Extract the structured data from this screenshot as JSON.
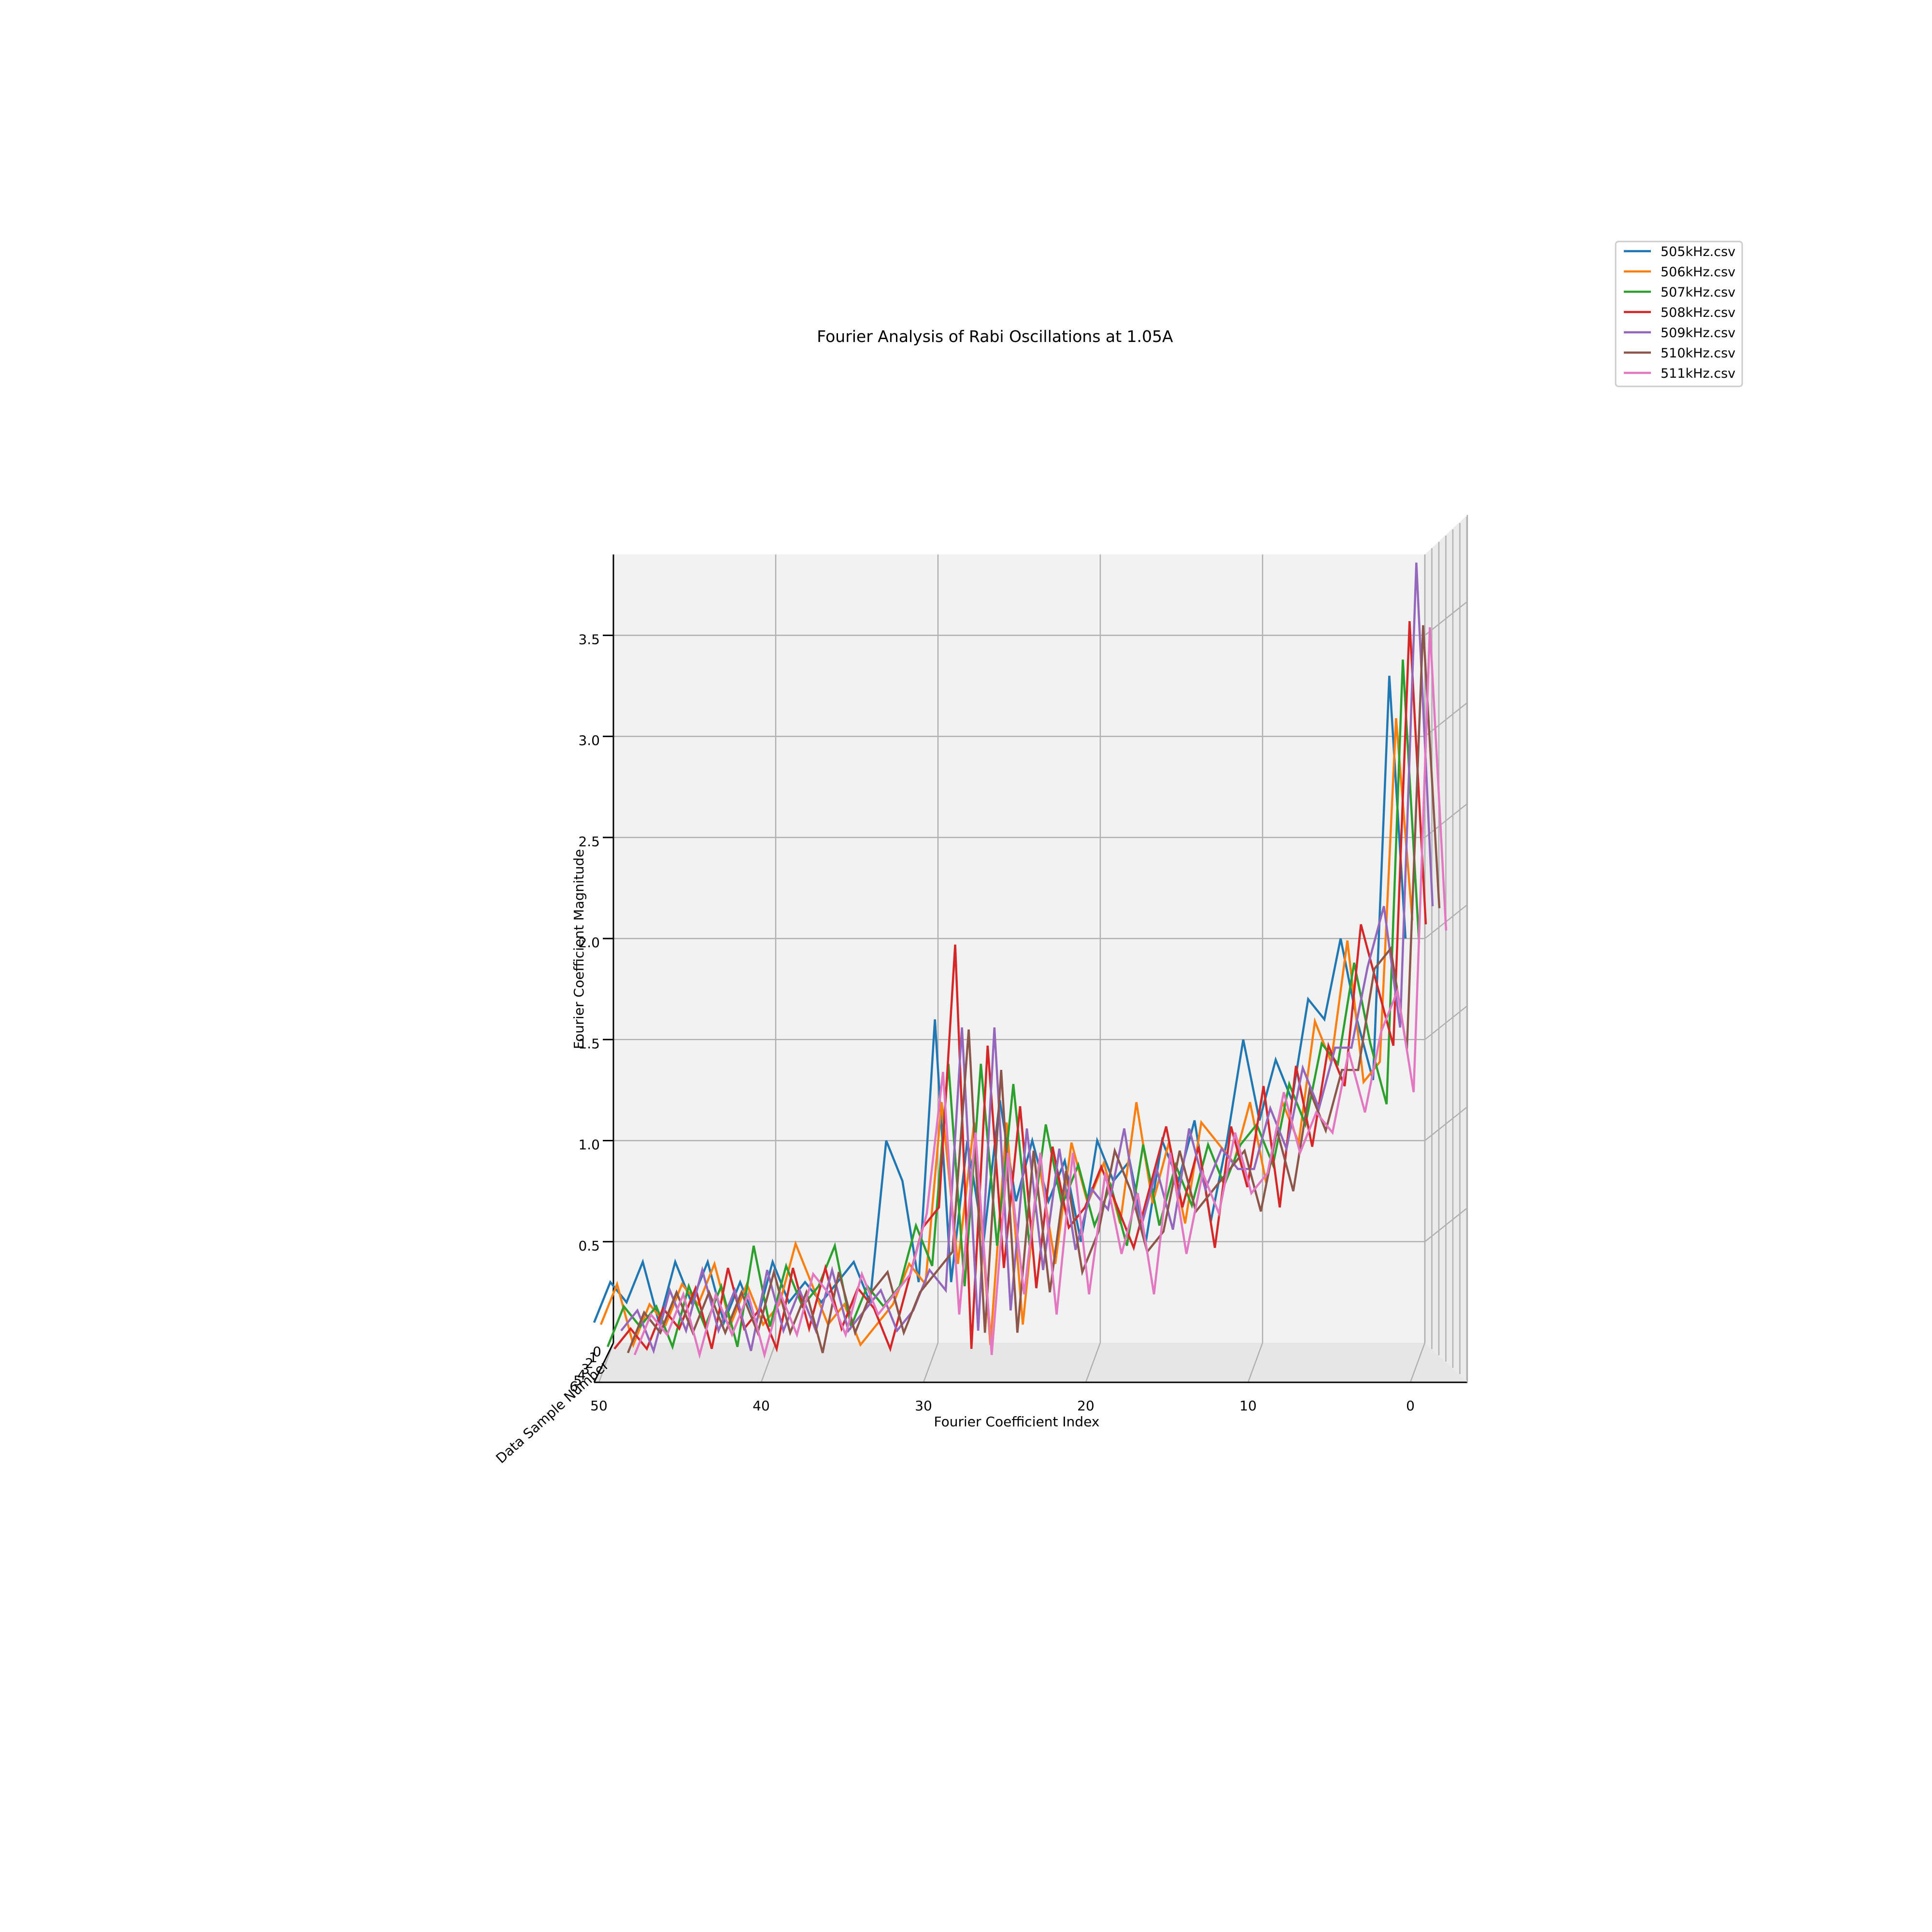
{
  "chart_data": {
    "type": "line",
    "projection": "3d",
    "title": "Fourier Analysis of Rabi Oscillations at 1.05A",
    "xlabel": "Fourier Coefficient Index",
    "ylabel": "Fourier Coefficient Magnitude",
    "zlabel": "Data Sample Number",
    "xlim": [
      0,
      50
    ],
    "xaxis_inverted": true,
    "ylim": [
      0,
      3.9
    ],
    "x_ticks": [
      "50",
      "40",
      "30",
      "20",
      "10",
      "0"
    ],
    "x_tick_values": [
      50,
      40,
      30,
      20,
      10,
      0
    ],
    "y_ticks": [
      "0.5",
      "1.0",
      "1.5",
      "2.0",
      "2.5",
      "3.0",
      "3.5"
    ],
    "y_tick_values": [
      0.5,
      1.0,
      1.5,
      2.0,
      2.5,
      3.0,
      3.5
    ],
    "z_ticks": [
      "0",
      "1",
      "2",
      "3",
      "4",
      "5",
      "6"
    ],
    "legend_position": "top-right",
    "grid": true,
    "colors": [
      "#1f77b4",
      "#ff7f0e",
      "#2ca02c",
      "#d62728",
      "#9467bd",
      "#8c564b",
      "#e377c2"
    ],
    "series": [
      {
        "name": "505kHz.csv",
        "depth": 0,
        "values": [
          2.0,
          3.3,
          1.3,
          1.6,
          2.0,
          1.6,
          1.7,
          1.2,
          1.4,
          1.1,
          1.5,
          1.0,
          0.6,
          1.1,
          0.8,
          1.0,
          0.5,
          0.9,
          0.8,
          1.0,
          0.5,
          0.9,
          0.7,
          1.0,
          0.7,
          1.2,
          0.5,
          1.0,
          0.3,
          1.6,
          0.3,
          0.8,
          1.0,
          0.2,
          0.4,
          0.3,
          0.2,
          0.3,
          0.2,
          0.4,
          0.1,
          0.3,
          0.1,
          0.4,
          0.2,
          0.4,
          0.1,
          0.4,
          0.2,
          0.3,
          0.1
        ]
      },
      {
        "name": "506kHz.csv",
        "depth": 1,
        "values": [
          2.1,
          3.1,
          1.4,
          1.3,
          2.0,
          1.4,
          1.6,
          1.0,
          1.2,
          0.8,
          1.2,
          0.9,
          1.0,
          1.1,
          0.6,
          1.0,
          0.7,
          1.2,
          0.6,
          0.9,
          0.7,
          1.0,
          0.4,
          0.9,
          0.1,
          1.1,
          0.0,
          1.1,
          0.4,
          1.2,
          0.3,
          0.4,
          0.2,
          0.1,
          0.0,
          0.2,
          0.1,
          0.3,
          0.5,
          0.2,
          0.1,
          0.3,
          0.1,
          0.4,
          0.2,
          0.3,
          0.1,
          0.2,
          0.0,
          0.3,
          0.1
        ]
      },
      {
        "name": "507kHz.csv",
        "depth": 2,
        "values": [
          2.0,
          3.4,
          1.2,
          1.5,
          1.9,
          1.4,
          1.5,
          1.1,
          1.3,
          0.9,
          1.1,
          1.0,
          0.8,
          1.0,
          0.7,
          0.9,
          0.6,
          1.0,
          0.5,
          0.8,
          0.6,
          0.9,
          0.7,
          1.1,
          0.5,
          1.3,
          0.5,
          1.4,
          0.3,
          1.4,
          0.4,
          0.6,
          0.3,
          0.2,
          0.3,
          0.1,
          0.5,
          0.3,
          0.2,
          0.4,
          0.1,
          0.5,
          0.0,
          0.3,
          0.1,
          0.3,
          0.0,
          0.2,
          0.1,
          0.2,
          0.0
        ]
      },
      {
        "name": "508kHz.csv",
        "depth": 3,
        "values": [
          2.1,
          3.6,
          1.5,
          1.8,
          2.1,
          1.3,
          1.5,
          1.0,
          1.4,
          0.7,
          1.3,
          0.8,
          1.1,
          0.5,
          1.0,
          0.7,
          1.1,
          0.8,
          0.5,
          0.7,
          0.9,
          0.7,
          0.6,
          1.0,
          0.3,
          1.2,
          0.4,
          1.5,
          0.0,
          2.0,
          0.7,
          0.6,
          0.3,
          0.0,
          0.2,
          0.3,
          0.1,
          0.4,
          0.1,
          0.4,
          0.0,
          0.2,
          0.1,
          0.4,
          0.0,
          0.3,
          0.1,
          0.2,
          0.0,
          0.1,
          0.0
        ]
      },
      {
        "name": "509kHz.csv",
        "depth": 4,
        "values": [
          2.2,
          3.9,
          1.6,
          2.2,
          1.9,
          1.5,
          1.5,
          1.2,
          1.4,
          1.0,
          1.2,
          0.9,
          0.9,
          1.0,
          0.8,
          1.1,
          0.6,
          0.9,
          0.6,
          1.1,
          0.7,
          0.8,
          0.5,
          1.0,
          0.4,
          1.1,
          0.2,
          1.6,
          0.1,
          1.6,
          0.3,
          0.4,
          0.2,
          0.1,
          0.3,
          0.2,
          0.1,
          0.4,
          0.1,
          0.3,
          0.1,
          0.4,
          0.0,
          0.3,
          0.1,
          0.4,
          0.1,
          0.3,
          0.0,
          0.2,
          0.1
        ]
      },
      {
        "name": "510kHz.csv",
        "depth": 5,
        "values": [
          2.2,
          3.6,
          1.5,
          2.0,
          1.9,
          1.4,
          1.4,
          1.1,
          1.3,
          0.8,
          1.1,
          0.7,
          1.0,
          0.9,
          0.8,
          0.7,
          1.0,
          0.6,
          0.5,
          0.8,
          1.0,
          0.6,
          0.4,
          0.9,
          0.3,
          1.0,
          0.1,
          1.4,
          0.1,
          1.6,
          0.5,
          0.4,
          0.3,
          0.1,
          0.4,
          0.3,
          0.1,
          0.4,
          0.0,
          0.3,
          0.1,
          0.4,
          0.1,
          0.3,
          0.1,
          0.3,
          0.1,
          0.3,
          0.1,
          0.2,
          0.0
        ]
      },
      {
        "name": "511kHz.csv",
        "depth": 6,
        "values": [
          2.1,
          3.6,
          1.3,
          1.8,
          1.6,
          1.2,
          1.5,
          1.1,
          1.2,
          1.0,
          1.3,
          0.9,
          0.8,
          1.1,
          0.7,
          0.9,
          0.5,
          1.0,
          0.3,
          0.8,
          0.5,
          0.9,
          0.3,
          1.0,
          0.2,
          1.0,
          0.3,
          1.0,
          0.0,
          1.1,
          0.2,
          1.4,
          0.7,
          0.4,
          0.3,
          0.2,
          0.4,
          0.1,
          0.3,
          0.4,
          0.1,
          0.3,
          0.0,
          0.3,
          0.1,
          0.3,
          0.0,
          0.3,
          0.1,
          0.2,
          0.0
        ]
      }
    ]
  }
}
